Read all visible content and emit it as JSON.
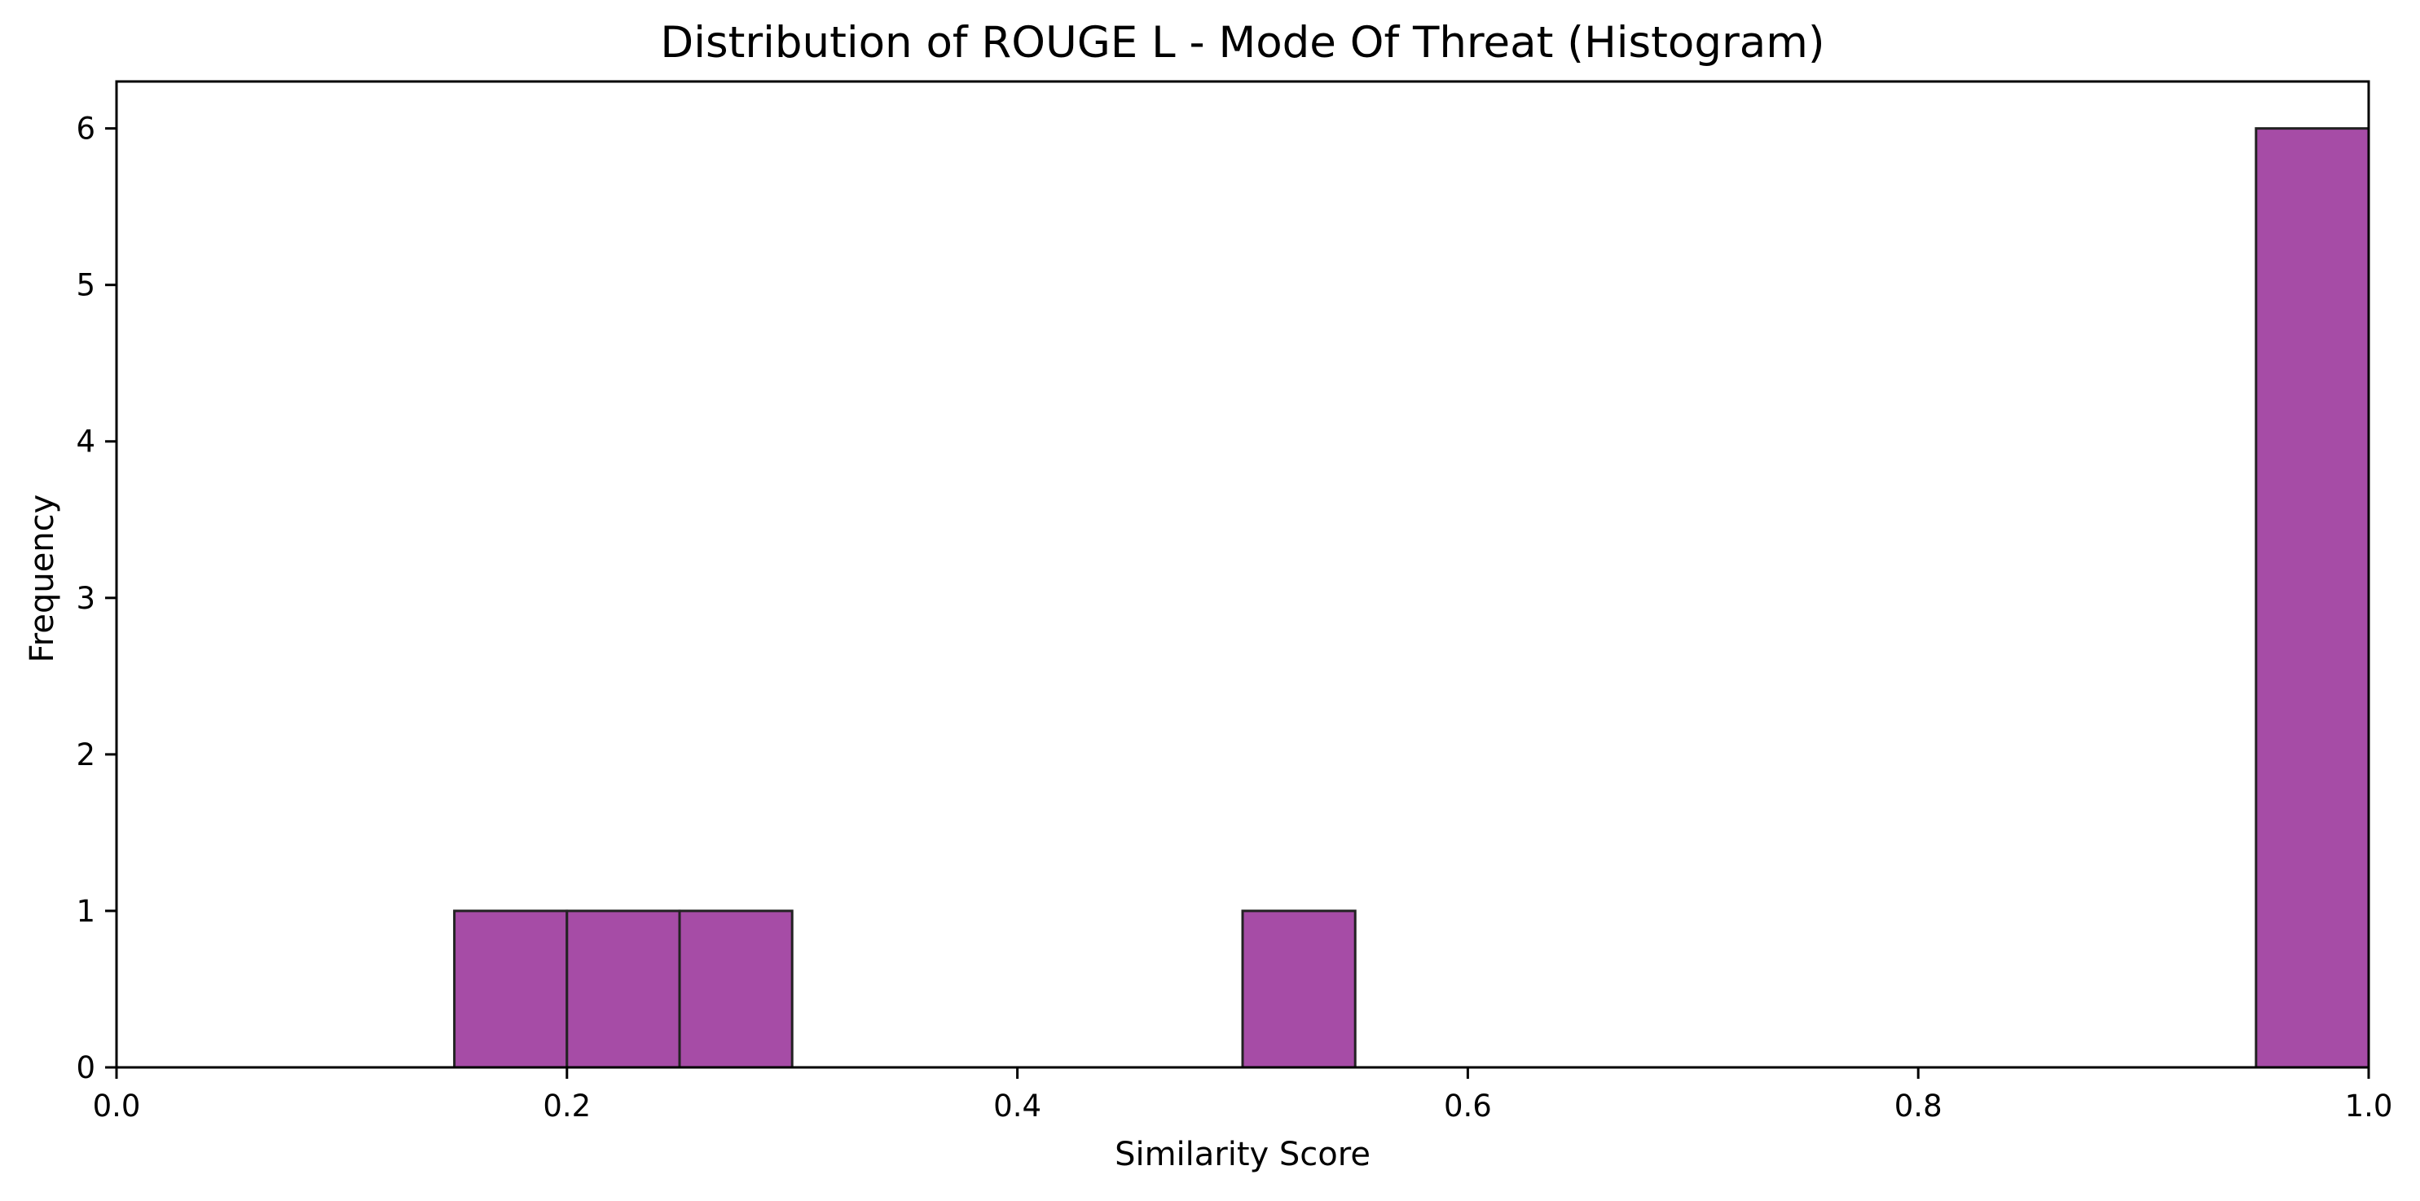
{
  "chart_data": {
    "type": "bar",
    "title": "Distribution of ROUGE L - Mode Of Threat (Histogram)",
    "xlabel": "Similarity Score",
    "ylabel": "Frequency",
    "xlim": [
      0.0,
      1.0
    ],
    "ylim": [
      0,
      6.3
    ],
    "x_ticks": [
      0.0,
      0.2,
      0.4,
      0.6,
      0.8,
      1.0
    ],
    "x_tick_labels": [
      "0.0",
      "0.2",
      "0.4",
      "0.6",
      "0.8",
      "1.0"
    ],
    "y_ticks": [
      0,
      1,
      2,
      3,
      4,
      5,
      6
    ],
    "y_tick_labels": [
      "0",
      "1",
      "2",
      "3",
      "4",
      "5",
      "6"
    ],
    "bins": [
      {
        "x0": 0.15,
        "x1": 0.2,
        "count": 1
      },
      {
        "x0": 0.2,
        "x1": 0.25,
        "count": 1
      },
      {
        "x0": 0.25,
        "x1": 0.3,
        "count": 1
      },
      {
        "x0": 0.5,
        "x1": 0.55,
        "count": 1
      },
      {
        "x0": 0.95,
        "x1": 1.0,
        "count": 6
      }
    ],
    "bar_color": "#a64ca6",
    "bar_edge_color": "#222222",
    "grid": false,
    "legend": "none"
  }
}
